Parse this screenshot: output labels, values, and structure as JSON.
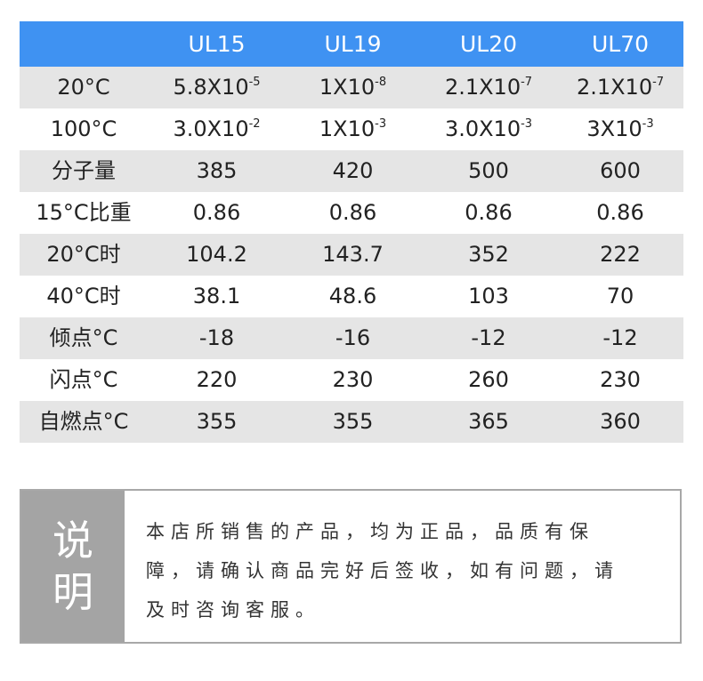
{
  "table": {
    "header": [
      "",
      "UL15",
      "UL19",
      "UL20",
      "UL70"
    ],
    "rows": [
      {
        "label": "20°C",
        "cells": [
          [
            "5.8X10",
            "-5"
          ],
          [
            "1X10",
            "-8"
          ],
          [
            "2.1X10",
            "-7"
          ],
          [
            "2.1X10",
            "-7"
          ]
        ]
      },
      {
        "label": "100°C",
        "cells": [
          [
            "3.0X10",
            "-2"
          ],
          [
            "1X10",
            "-3"
          ],
          [
            "3.0X10",
            "-3"
          ],
          [
            "3X10",
            "-3"
          ]
        ]
      },
      {
        "label": "分子量",
        "cells": [
          [
            "385",
            ""
          ],
          [
            "420",
            ""
          ],
          [
            "500",
            ""
          ],
          [
            "600",
            ""
          ]
        ]
      },
      {
        "label": "15°C比重",
        "cells": [
          [
            "0.86",
            ""
          ],
          [
            "0.86",
            ""
          ],
          [
            "0.86",
            ""
          ],
          [
            "0.86",
            ""
          ]
        ]
      },
      {
        "label": "20°C时",
        "cells": [
          [
            "104.2",
            ""
          ],
          [
            "143.7",
            ""
          ],
          [
            "352",
            ""
          ],
          [
            "222",
            ""
          ]
        ]
      },
      {
        "label": "40°C时",
        "cells": [
          [
            "38.1",
            ""
          ],
          [
            "48.6",
            ""
          ],
          [
            "103",
            ""
          ],
          [
            "70",
            ""
          ]
        ]
      },
      {
        "label": "倾点°C",
        "cells": [
          [
            "-18",
            ""
          ],
          [
            "-16",
            ""
          ],
          [
            "-12",
            ""
          ],
          [
            "-12",
            ""
          ]
        ]
      },
      {
        "label": "闪点°C",
        "cells": [
          [
            "220",
            ""
          ],
          [
            "230",
            ""
          ],
          [
            "260",
            ""
          ],
          [
            "230",
            ""
          ]
        ]
      },
      {
        "label": "自燃点°C",
        "cells": [
          [
            "355",
            ""
          ],
          [
            "355",
            ""
          ],
          [
            "365",
            ""
          ],
          [
            "360",
            ""
          ]
        ]
      }
    ]
  },
  "note": {
    "label_chars": [
      "说",
      "明"
    ],
    "lines": [
      "本店所销售的产品，均为正品，品质有保",
      "障，请确认商品完好后签收，如有问题，请",
      "及时咨询客服。"
    ]
  },
  "colors": {
    "header_bg": "#3f92f2",
    "stripe_bg": "#e5e5e5",
    "note_label_bg": "#a4a4a4"
  }
}
